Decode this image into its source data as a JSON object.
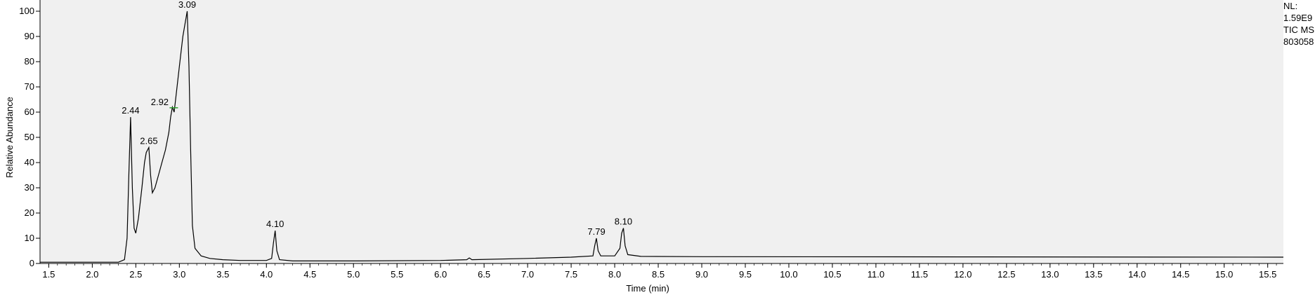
{
  "chart_data": {
    "type": "line",
    "xlabel": "Time (min)",
    "ylabel": "Relative Abundance",
    "xlim": [
      1.4,
      15.68
    ],
    "ylim": [
      0,
      100
    ],
    "x_ticks": [
      "1.5",
      "2.0",
      "2.5",
      "3.0",
      "3.5",
      "4.0",
      "4.5",
      "5.0",
      "5.5",
      "6.0",
      "6.5",
      "7.0",
      "7.5",
      "8.0",
      "8.5",
      "9.0",
      "9.5",
      "10.0",
      "10.5",
      "11.0",
      "11.5",
      "12.0",
      "12.5",
      "13.0",
      "13.5",
      "14.0",
      "14.5",
      "15.0",
      "15.5"
    ],
    "y_ticks": [
      "0",
      "10",
      "20",
      "30",
      "40",
      "50",
      "60",
      "70",
      "80",
      "90",
      "100"
    ],
    "grid": false,
    "series": [
      {
        "x": [
          1.4,
          2.3,
          2.37,
          2.4,
          2.42,
          2.44,
          2.46,
          2.48,
          2.5,
          2.53,
          2.57,
          2.6,
          2.62,
          2.65,
          2.67,
          2.69,
          2.72,
          2.76,
          2.8,
          2.84,
          2.88,
          2.9,
          2.92,
          2.94,
          2.96,
          3.0,
          3.04,
          3.07,
          3.09,
          3.11,
          3.13,
          3.15,
          3.18,
          3.25,
          3.35,
          3.5,
          3.7,
          4.0,
          4.06,
          4.08,
          4.1,
          4.12,
          4.15,
          4.3,
          5.0,
          6.0,
          6.3,
          6.33,
          6.36,
          7.0,
          7.5,
          7.75,
          7.77,
          7.79,
          7.81,
          7.84,
          8.0,
          8.06,
          8.08,
          8.1,
          8.12,
          8.15,
          8.3,
          9.0,
          12.0,
          15.68
        ],
        "y": [
          0.5,
          0.5,
          1.5,
          10,
          35,
          58,
          30,
          14,
          12,
          18,
          30,
          40,
          44,
          46,
          35,
          28,
          30,
          35,
          40,
          45,
          52,
          58,
          62,
          60,
          66,
          78,
          90,
          96,
          100,
          78,
          45,
          15,
          6,
          3,
          2,
          1.5,
          1.2,
          1.2,
          2,
          8,
          13,
          5,
          1.5,
          1,
          1,
          1.2,
          1.5,
          2.2,
          1.5,
          2,
          2.5,
          3,
          7,
          10,
          5,
          3,
          3,
          6,
          12,
          14,
          7,
          3.5,
          2.8,
          2.7,
          2.6,
          2.5
        ]
      }
    ],
    "annotations": [
      {
        "label": "2.44",
        "x": 2.44,
        "y": 58
      },
      {
        "label": "2.65",
        "x": 2.65,
        "y": 46
      },
      {
        "label": "2.92",
        "x": 2.92,
        "y": 62
      },
      {
        "label": "3.09",
        "x": 3.09,
        "y": 100
      },
      {
        "label": "4.10",
        "x": 4.1,
        "y": 13
      },
      {
        "label": "7.79",
        "x": 7.79,
        "y": 10
      },
      {
        "label": "8.10",
        "x": 8.1,
        "y": 14
      }
    ],
    "info": [
      "NL:",
      "1.59E9",
      "TIC  MS",
      "803058"
    ],
    "colors": {
      "background": "#f0f0f0",
      "trace": "#000000",
      "baseline_marker": "#2e9e2e"
    }
  }
}
